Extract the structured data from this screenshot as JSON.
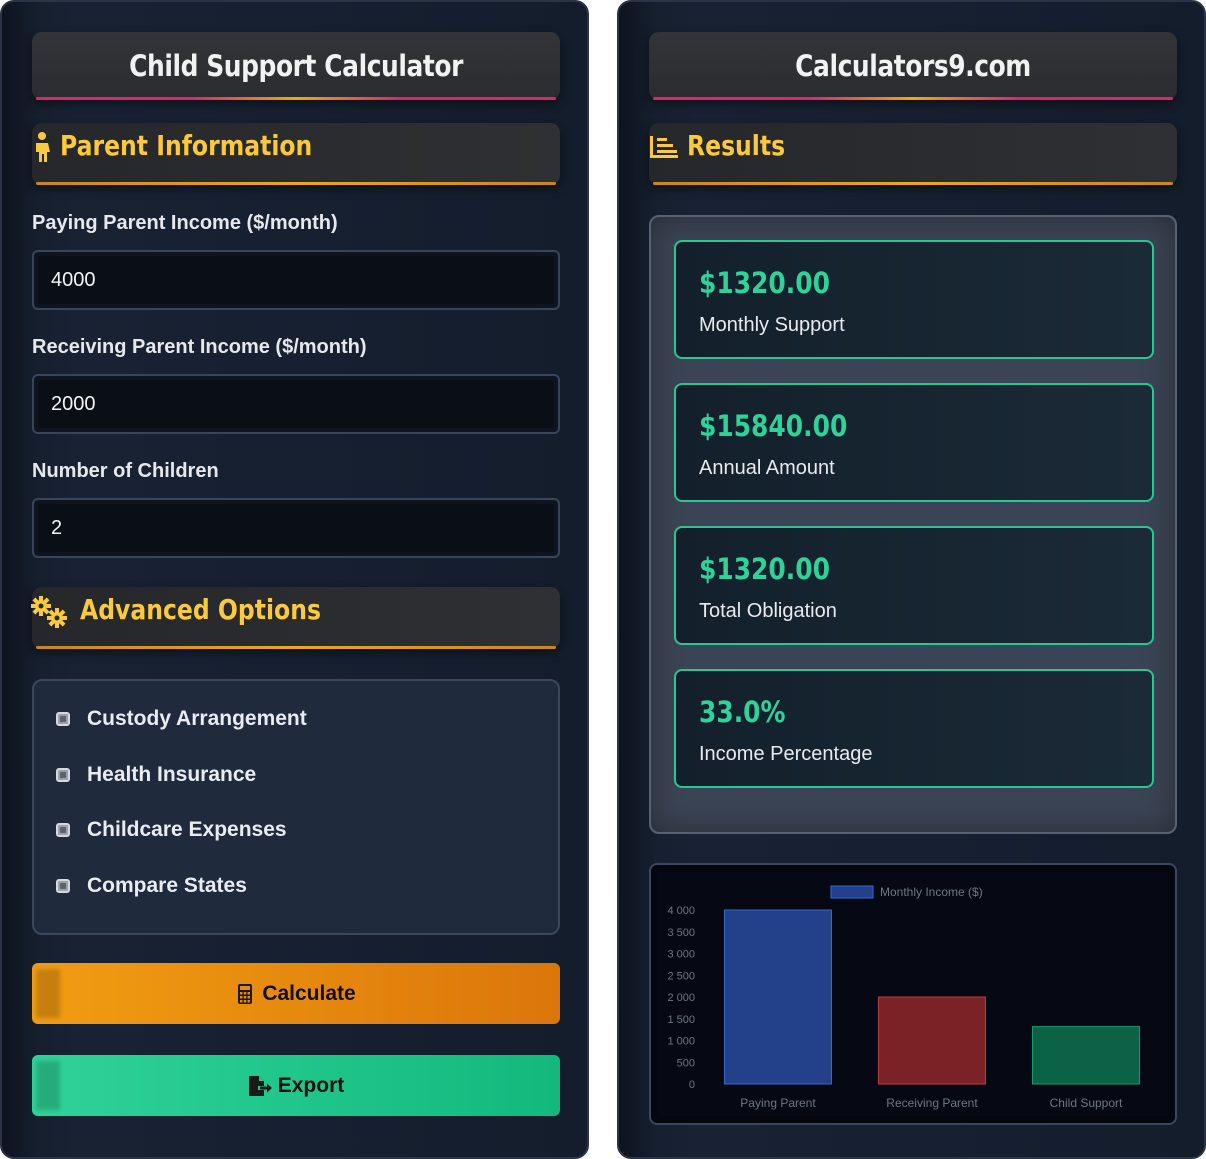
{
  "left": {
    "title": "Child Support Calculator",
    "parent_section": {
      "title": "Parent Information",
      "icon": "person-icon"
    },
    "fields": [
      {
        "label": "Paying Parent Income ($/month)",
        "value": "4000"
      },
      {
        "label": "Receiving Parent Income ($/month)",
        "value": "2000"
      },
      {
        "label": "Number of Children",
        "value": "2"
      }
    ],
    "advanced_section": {
      "title": "Advanced Options",
      "icon": "gears-icon"
    },
    "options": [
      {
        "label": "Custody Arrangement",
        "checked": false
      },
      {
        "label": "Health Insurance",
        "checked": false
      },
      {
        "label": "Childcare Expenses",
        "checked": false
      },
      {
        "label": "Compare States",
        "checked": false
      }
    ],
    "buttons": {
      "calculate": {
        "label": "Calculate",
        "icon": "calculator-icon",
        "color": "#f19d12"
      },
      "export": {
        "label": "Export",
        "icon": "file-export-icon",
        "color": "#2fd39a"
      }
    }
  },
  "right": {
    "title": "Calculators9.com",
    "results_section": {
      "title": "Results",
      "icon": "list-chart-icon"
    },
    "results": [
      {
        "value": "$1320.00",
        "label": "Monthly Support"
      },
      {
        "value": "$15840.00",
        "label": "Annual Amount"
      },
      {
        "value": "$1320.00",
        "label": "Total Obligation"
      },
      {
        "value": "33.0%",
        "label": "Income Percentage"
      }
    ]
  },
  "colors": {
    "accent_yellow": "#fbc93d",
    "accent_green": "#2fd39a",
    "title_underline": "#e0236e"
  },
  "chart_data": {
    "type": "bar",
    "categories": [
      "Paying Parent",
      "Receiving Parent",
      "Child Support"
    ],
    "series": [
      {
        "name": "Monthly Income ($)",
        "values": [
          4000,
          2000,
          1320
        ]
      }
    ],
    "bar_colors": [
      "#22418a",
      "#7a2226",
      "#0b6246"
    ],
    "bar_borders": [
      "#3566d1",
      "#c43a3a",
      "#1a9a6a"
    ],
    "ylim": [
      0,
      4000
    ],
    "yticks": [
      "4 000",
      "3 500",
      "3 000",
      "2 500",
      "2 000",
      "1 500",
      "1 000",
      "500",
      "0"
    ],
    "legend": "top-center"
  }
}
